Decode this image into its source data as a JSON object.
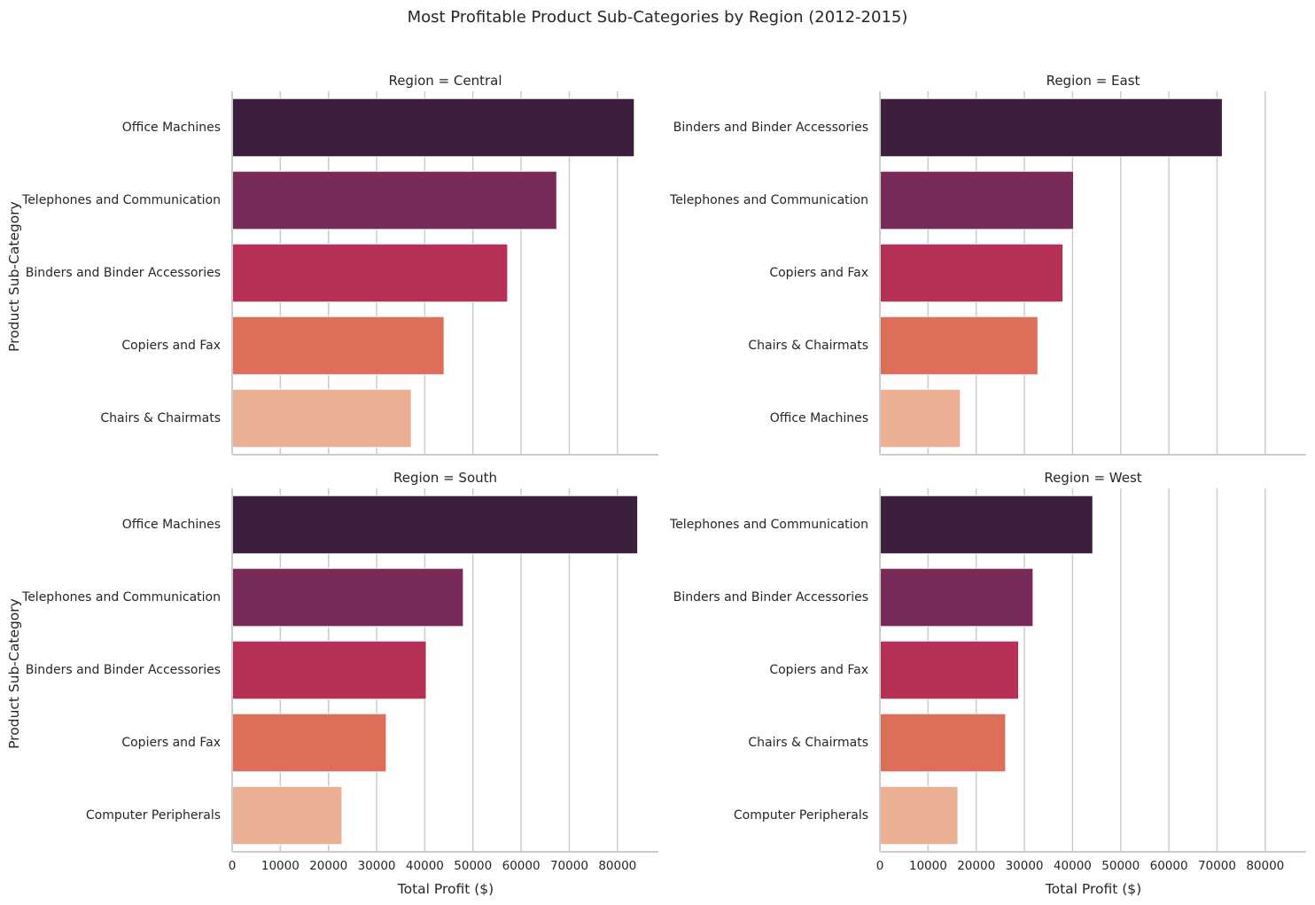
{
  "chart_data": {
    "type": "bar",
    "title": "Most Profitable Product Sub-Categories by Region (2012-2015)",
    "xlabel": "Total Profit ($)",
    "ylabel": "Product Sub-Category",
    "xlim": [
      0,
      88500
    ],
    "xticks": [
      0,
      10000,
      20000,
      30000,
      40000,
      50000,
      60000,
      70000,
      80000
    ],
    "grid": "vertical",
    "orientation": "horizontal",
    "palette": [
      "#3b1f3d",
      "#782a58",
      "#b73056",
      "#dc6e5a",
      "#ebb093"
    ],
    "panels": [
      {
        "title": "Region = Central",
        "categories": [
          "Office Machines",
          "Telephones and Communication",
          "Binders and Binder Accessories",
          "Copiers and Fax",
          "Chairs & Chairmats"
        ],
        "values": [
          83500,
          67400,
          57200,
          44000,
          37200
        ]
      },
      {
        "title": "Region = East",
        "categories": [
          "Binders and Binder Accessories",
          "Telephones and Communication",
          "Copiers and Fax",
          "Chairs & Chairmats",
          "Office Machines"
        ],
        "values": [
          71100,
          40200,
          38000,
          32800,
          16700
        ]
      },
      {
        "title": "Region = South",
        "categories": [
          "Office Machines",
          "Telephones and Communication",
          "Binders and Binder Accessories",
          "Copiers and Fax",
          "Computer Peripherals"
        ],
        "values": [
          84200,
          48000,
          40300,
          32000,
          22800
        ]
      },
      {
        "title": "Region = West",
        "categories": [
          "Telephones and Communication",
          "Binders and Binder Accessories",
          "Copiers and Fax",
          "Chairs & Chairmats",
          "Computer Peripherals"
        ],
        "values": [
          44200,
          31800,
          28800,
          26100,
          16200
        ]
      }
    ]
  }
}
